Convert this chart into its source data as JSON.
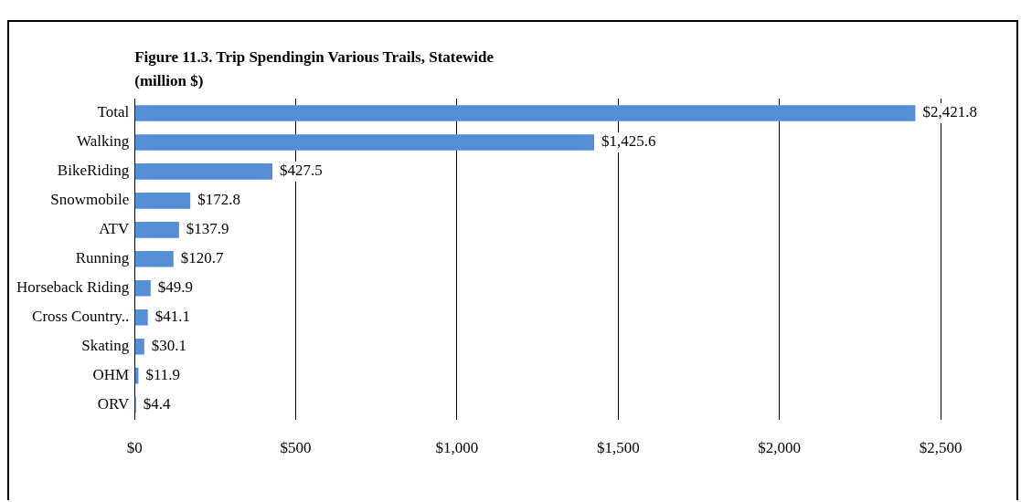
{
  "chart_data": {
    "type": "bar",
    "orientation": "horizontal",
    "title": "Figure 11.3. Trip Spendingin Various Trails, Statewide",
    "subtitle": "(million $)",
    "categories": [
      "Total",
      "Walking",
      "BikeRiding",
      "Snowmobile",
      "ATV",
      "Running",
      "Horseback Riding",
      "Cross Country..",
      "Skating",
      "OHM",
      "ORV"
    ],
    "values": [
      2421.8,
      1425.6,
      427.5,
      172.8,
      137.9,
      120.7,
      49.9,
      41.1,
      30.1,
      11.9,
      4.4
    ],
    "value_labels": [
      "$2,421.8",
      "$1,425.6",
      "$427.5",
      "$172.8",
      "$137.9",
      "$120.7",
      "$49.9",
      "$41.1",
      "$30.1",
      "$11.9",
      "$4.4"
    ],
    "color": "#558ed5",
    "xlim": [
      0,
      2500
    ],
    "xticks": [
      {
        "value": 0,
        "label": "$0"
      },
      {
        "value": 500,
        "label": "$500"
      },
      {
        "value": 1000,
        "label": "$1,000"
      },
      {
        "value": 1500,
        "label": "$1,500"
      },
      {
        "value": 2000,
        "label": "$2,000"
      },
      {
        "value": 2500,
        "label": "$2,500"
      }
    ],
    "grid": "x",
    "legend": false
  }
}
